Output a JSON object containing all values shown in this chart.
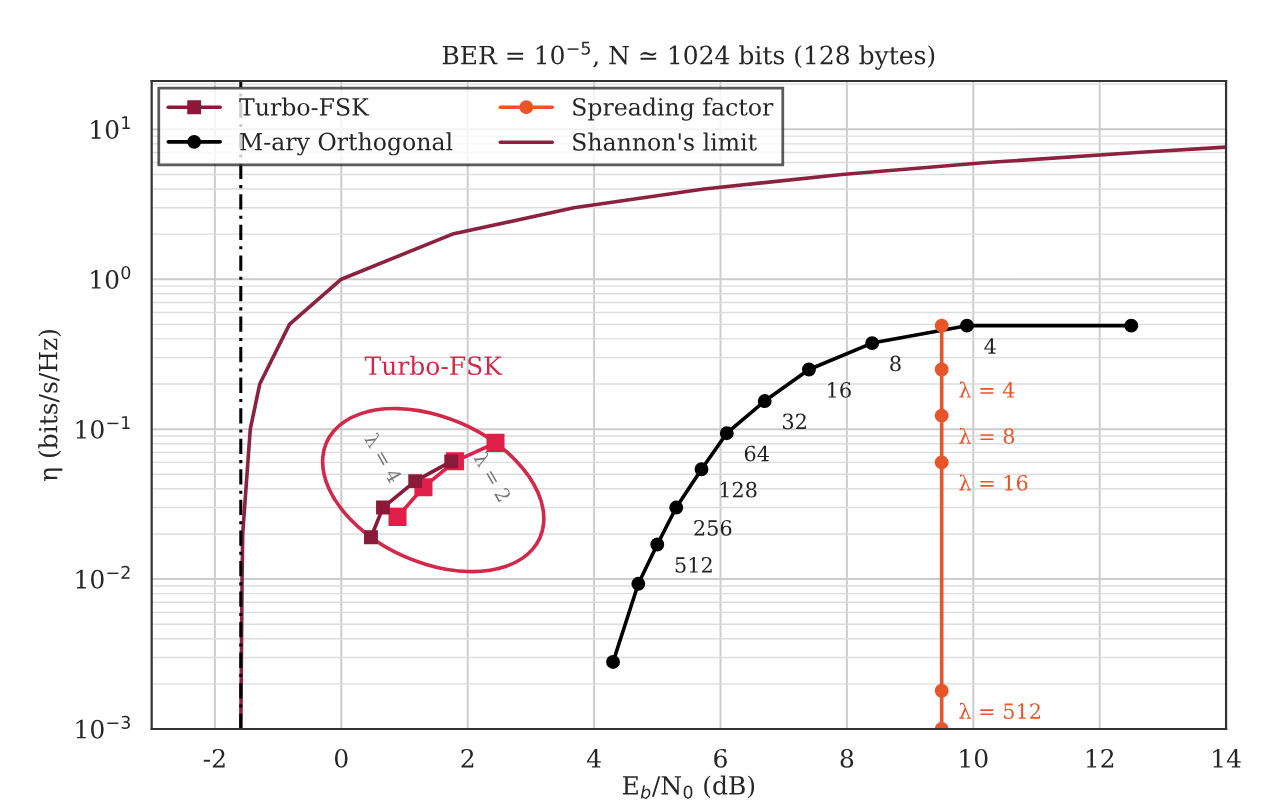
{
  "chart_data": {
    "type": "line",
    "title": "BER = 10$^{−5}$, N ≃ 1024 bits (128 bytes)",
    "xlabel": "E$_{b}$/N$_{0}$ (dB)",
    "ylabel": "η (bits/s/Hz)",
    "log": "y",
    "xlim": [
      -3,
      14
    ],
    "ylim": [
      0.001,
      21
    ],
    "xticks": [
      -2,
      0,
      2,
      4,
      6,
      8,
      10,
      12,
      14
    ],
    "yticks": [
      {
        "value": 0.001,
        "label": "10$^{−3}$"
      },
      {
        "value": 0.01,
        "label": "10$^{−2}$"
      },
      {
        "value": 0.1,
        "label": "10$^{−1}$"
      },
      {
        "value": 1,
        "label": "10$^{0}$"
      },
      {
        "value": 10,
        "label": "10$^{1}$"
      }
    ],
    "grid": true,
    "legend": "top left",
    "series": [
      {
        "name": "Turbo-FSK",
        "color": "#8b1a3a",
        "marker": "square",
        "x": [
          0.47,
          0.66,
          1.17,
          1.74
        ],
        "values": [
          0.019,
          0.03,
          0.045,
          0.061
        ]
      },
      {
        "color": "#e0204a",
        "marker": "square",
        "x": [
          0.89,
          1.3,
          1.8,
          2.44
        ],
        "values": [
          0.026,
          0.041,
          0.061,
          0.081
        ]
      },
      {
        "name": "M-ary Orthogonal",
        "color": "#000000",
        "marker": "circle",
        "x": [
          4.3,
          4.7,
          5.0,
          5.3,
          5.7,
          6.1,
          6.7,
          7.4,
          8.4,
          9.9,
          12.5
        ],
        "values": [
          0.0028,
          0.0093,
          0.017,
          0.03,
          0.054,
          0.094,
          0.154,
          0.25,
          0.375,
          0.49,
          0.49
        ]
      },
      {
        "name": "Spreading factor",
        "color": "#e8552a",
        "marker": "circle",
        "x": [
          9.5,
          9.5,
          9.5,
          9.5,
          9.5,
          9.5
        ],
        "values": [
          0.001,
          0.0018,
          0.06,
          0.123,
          0.25,
          0.49
        ]
      },
      {
        "name": "Shannon's limit",
        "color": "#8b2340",
        "marker": "none",
        "x": [
          -1.59,
          -1.57,
          -1.56,
          -1.44,
          -1.29,
          -0.82,
          0.0,
          1.76,
          3.68,
          5.74,
          7.92,
          10.21,
          12.59,
          14.0
        ],
        "values": [
          0.001,
          0.01,
          0.02,
          0.1,
          0.2,
          0.5,
          1,
          2,
          3,
          4,
          5,
          6,
          7,
          7.6
        ]
      }
    ],
    "ref_lines": [
      {
        "axis": "x",
        "value": -1.59,
        "color": "#000000",
        "line_style": "dashed"
      }
    ],
    "annotations": [
      "Turbo-FSK",
      "λ = 4",
      "λ = 2",
      {
        "text": "512",
        "x": 5.0,
        "y": 0.017
      },
      {
        "text": "256",
        "x": 5.3,
        "y": 0.03
      },
      {
        "text": "128",
        "x": 5.7,
        "y": 0.054
      },
      {
        "text": "64",
        "x": 6.1,
        "y": 0.094
      },
      {
        "text": "32",
        "x": 6.7,
        "y": 0.154
      },
      {
        "text": "16",
        "x": 7.4,
        "y": 0.25
      },
      {
        "text": "8",
        "x": 8.4,
        "y": 0.375
      },
      {
        "text": "4",
        "x": 9.9,
        "y": 0.49
      },
      {
        "text": "λ = 512",
        "x": 9.5,
        "y": 0.0018
      },
      {
        "text": "λ = 16",
        "x": 9.5,
        "y": 0.06
      },
      {
        "text": "λ = 8",
        "x": 9.5,
        "y": 0.123
      },
      {
        "text": "λ = 4",
        "x": 9.5,
        "y": 0.25
      }
    ]
  }
}
